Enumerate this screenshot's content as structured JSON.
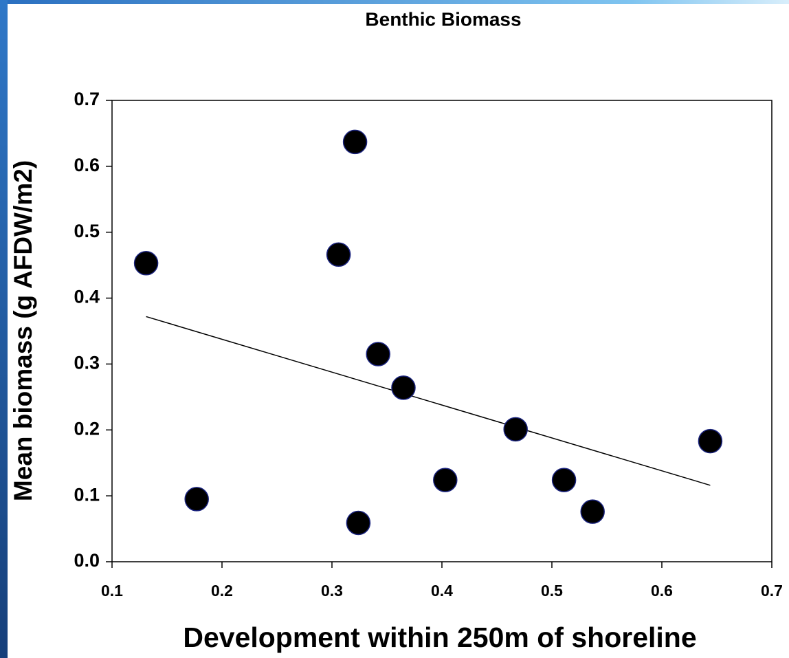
{
  "chart_data": {
    "type": "scatter",
    "title": "Benthic Biomass",
    "x_label": "Development within 250m of shoreline",
    "y_label": "Mean biomass (g AFDW/m2)",
    "series": [
      {
        "name": null,
        "color": "#000000",
        "x": [
          0.131,
          0.177,
          0.306,
          0.321,
          0.324,
          0.342,
          0.365,
          0.403,
          0.467,
          0.511,
          0.537,
          0.644
        ],
        "values": [
          0.453,
          0.095,
          0.466,
          0.637,
          0.059,
          0.315,
          0.264,
          0.124,
          0.201,
          0.124,
          0.076,
          0.183
        ]
      }
    ],
    "trendline": {
      "x": [
        0.131,
        0.644
      ],
      "y": [
        0.372,
        0.116
      ],
      "color": "#000000"
    },
    "xlim": [
      0.1,
      0.7
    ],
    "xticks": [
      0.1,
      0.2,
      0.3,
      0.4,
      0.5,
      0.6,
      0.7
    ],
    "ylim": [
      0,
      0.7
    ],
    "yticks": [
      {
        "value": 0,
        "label": "0.0"
      },
      0.1,
      0.2,
      0.3,
      0.4,
      0.5,
      0.6,
      0.7
    ],
    "grid": false
  }
}
